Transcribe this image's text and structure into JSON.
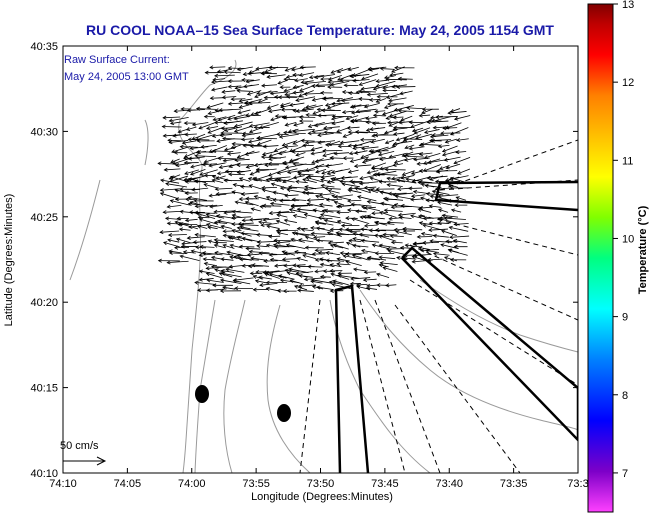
{
  "title": "RU COOL  NOAA–15  Sea Surface Temperature:  May 24, 2005 1154 GMT",
  "legend": {
    "line1": "Raw Surface Current:",
    "line2": "May 24, 2005 13:00 GMT"
  },
  "scale_label": "50 cm/s",
  "axes": {
    "xlabel": "Longitude (Degrees:Minutes)",
    "ylabel": "Latitude (Degrees:Minutes)",
    "x_ticks": [
      "74:10",
      "74:05",
      "74:00",
      "73:55",
      "73:50",
      "73:45",
      "73:40",
      "73:35",
      "73:3"
    ],
    "y_ticks": [
      "40:35",
      "40:30",
      "40:25",
      "40:20",
      "40:15",
      "40:10"
    ]
  },
  "colorbar": {
    "label": "Temperature (°C)",
    "ticks": [
      "13",
      "12",
      "11",
      "10",
      "9",
      "8",
      "7"
    ],
    "min": 6.5,
    "max": 13,
    "colors": [
      "#ff40ff",
      "#7d00c8",
      "#0000ff",
      "#0080ff",
      "#00ffff",
      "#00ff80",
      "#80ff00",
      "#ffff00",
      "#ffc000",
      "#ff8000",
      "#ff0000",
      "#c00000",
      "#800000"
    ]
  },
  "colors": {
    "title": "#1a1aa8",
    "arrows": "#000000",
    "contours": "#9a9a9a"
  }
}
